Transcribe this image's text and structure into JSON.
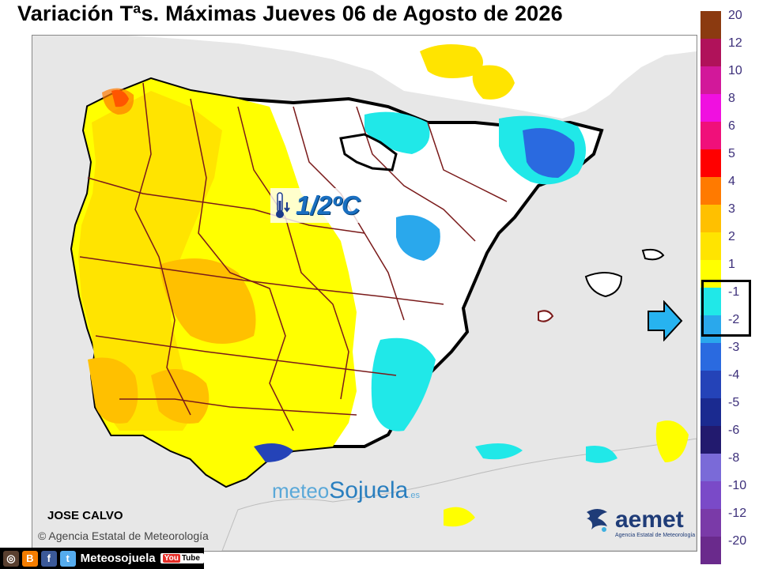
{
  "title": "Variación Tªs. Máximas Jueves 06 de Agosto de 2026",
  "annotation": {
    "icon": "thermometer-down-icon",
    "text": "1/2ºC"
  },
  "watermark": {
    "part1": "meteo",
    "part2": "Sojuela",
    "part3": ".es"
  },
  "author": "JOSE CALVO",
  "copyright": "© Agencia Estatal de Meteorología",
  "aemet": {
    "name": "aemet",
    "subtitle": "Agencia Estatal de Meteorología"
  },
  "legend": [
    {
      "label": "20",
      "color": "#8b3a10"
    },
    {
      "label": "12",
      "color": "#b0125a"
    },
    {
      "label": "10",
      "color": "#d2189a"
    },
    {
      "label": "8",
      "color": "#f010e0"
    },
    {
      "label": "6",
      "color": "#f0107a"
    },
    {
      "label": "5",
      "color": "#ff0000"
    },
    {
      "label": "4",
      "color": "#ff7a00"
    },
    {
      "label": "3",
      "color": "#ffc000"
    },
    {
      "label": "2",
      "color": "#ffe400"
    },
    {
      "label": "1",
      "color": "#ffff00"
    },
    {
      "label": "-1",
      "color": "#20e8e8"
    },
    {
      "label": "-2",
      "color": "#2aa8ec"
    },
    {
      "label": "-3",
      "color": "#2a6ae0"
    },
    {
      "label": "-4",
      "color": "#2443b8"
    },
    {
      "label": "-5",
      "color": "#1a2a90"
    },
    {
      "label": "-6",
      "color": "#221a6e"
    },
    {
      "label": "-8",
      "color": "#7a6ad8"
    },
    {
      "label": "-10",
      "color": "#7a4ac8"
    },
    {
      "label": "-12",
      "color": "#7a3aa8"
    },
    {
      "label": "-20",
      "color": "#6a2a8c"
    }
  ],
  "social": {
    "icons": [
      "instagram-icon",
      "blogger-icon",
      "facebook-icon",
      "twitter-icon"
    ],
    "name": "Meteosojuela",
    "youtube_a": "You",
    "youtube_b": "Tube"
  },
  "colors": {
    "sea": "#e7e7e7",
    "land_neutral": "#ffffff",
    "warm1": "#ffff00",
    "warm2": "#ffe400",
    "warm3": "#ffc000",
    "cool1": "#20e8e8",
    "cool2": "#2aa8ec",
    "cool3": "#2a6ae0",
    "borders": "#7a1a1a"
  }
}
